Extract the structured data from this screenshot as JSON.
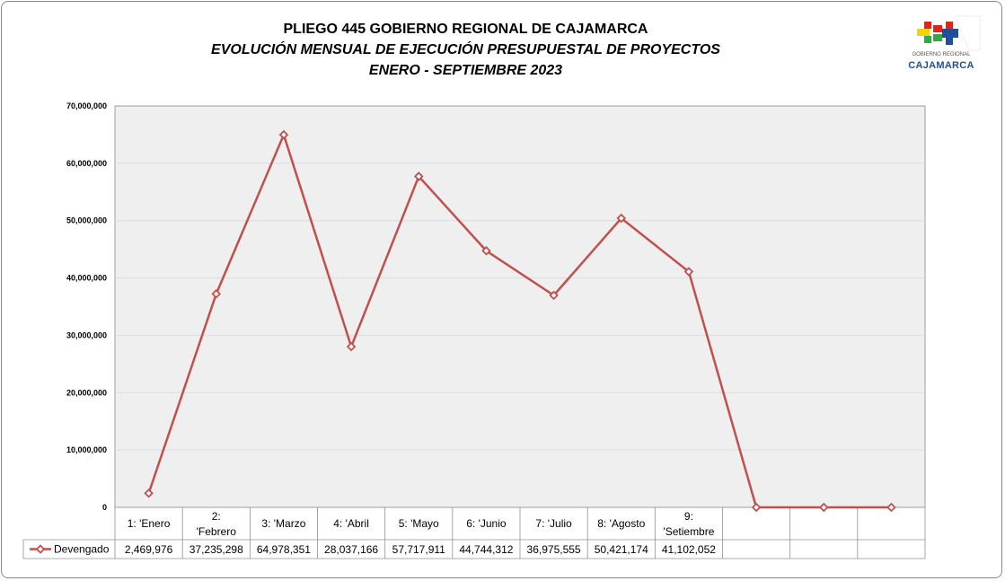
{
  "header": {
    "title_line1": "PLIEGO 445 GOBIERNO REGIONAL DE CAJAMARCA",
    "title_line2": "EVOLUCIÓN MENSUAL DE EJECUCIÓN PRESUPUESTAL DE PROYECTOS",
    "title_line3": "ENERO - SEPTIEMBRE 2023"
  },
  "logo": {
    "small_text": "GOBIERNO REGIONAL",
    "name": "CAJAMARCA",
    "colors": [
      "#e2231a",
      "#f6d300",
      "#35a849",
      "#1f4e9a"
    ]
  },
  "chart_data": {
    "type": "line",
    "title": "EVOLUCIÓN MENSUAL DE EJECUCIÓN PRESUPUESTAL DE PROYECTOS",
    "categories": [
      "1: 'Enero",
      "2: 'Febrero",
      "3: 'Marzo",
      "4: 'Abril",
      "5: 'Mayo",
      "6: 'Junio",
      "7: 'Julio",
      "8: 'Agosto",
      "9: 'Setiembre",
      "",
      "",
      ""
    ],
    "series": [
      {
        "name": "Devengado",
        "color": "#c0504d",
        "values": [
          2469976,
          37235298,
          64978351,
          28037166,
          57717911,
          44744312,
          36975555,
          50421174,
          41102052,
          0,
          0,
          0
        ],
        "value_labels": [
          "2,469,976",
          "37,235,298",
          "64,978,351",
          "28,037,166",
          "57,717,911",
          "44,744,312",
          "36,975,555",
          "50,421,174",
          "41,102,052",
          "",
          "",
          ""
        ]
      }
    ],
    "y_ticks": [
      "0",
      "10,000,000",
      "20,000,000",
      "30,000,000",
      "40,000,000",
      "50,000,000",
      "60,000,000",
      "70,000,000"
    ],
    "ylim": [
      0,
      70000000
    ],
    "grid": true,
    "legend": "data-table",
    "plot_background": "#efefef",
    "gridline_color": "#d5dde8"
  }
}
